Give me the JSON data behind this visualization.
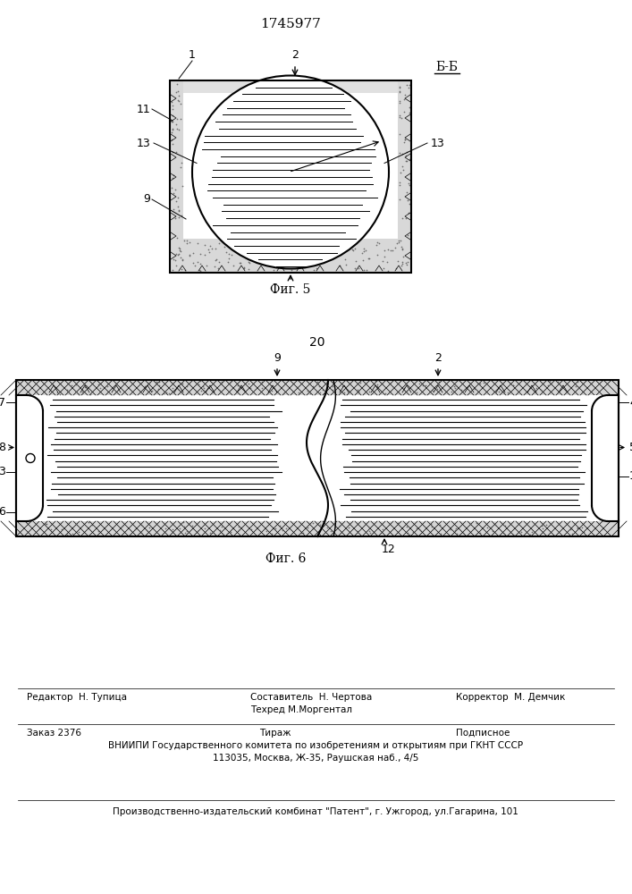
{
  "patent_number": "1745977",
  "fig5_label": "Б-Б",
  "fig5_caption": "Фиг. 5",
  "fig6_caption": "Фиг. 6",
  "page_num": "20",
  "editor_line": "Редактор  Н. Тупица",
  "composer_line": "Составитель  Н. Чертова",
  "techred_line": "Техред М.Моргентал",
  "corrector_line": "Корректор  М. Демчик",
  "order_line": "Заказ 2376",
  "tirazh_line": "Тираж",
  "podpisnoe_line": "Подписное",
  "vniip_line": "ВНИИПИ Государственного комитета по изобретениям и открытиям при ГКНТ СССР",
  "address_line": "113035, Москва, Ж-35, Раушская наб., 4/5",
  "kombinat_line": "Производственно-издательский комбинат \"Патент\", г. Ужгород, ул.Гагарина, 101"
}
